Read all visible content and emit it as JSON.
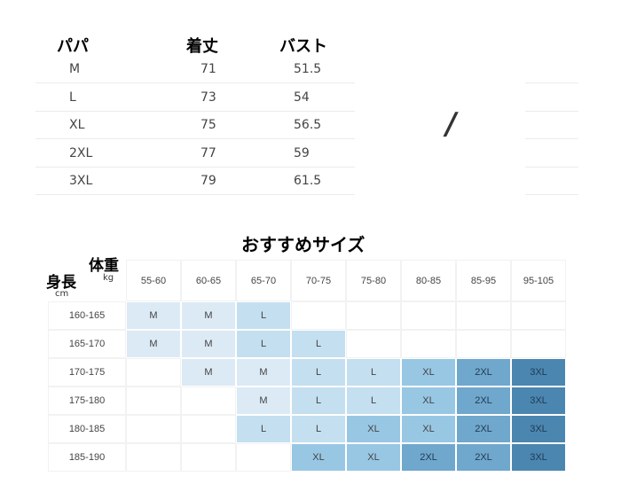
{
  "papa_table": {
    "headers": [
      "パパ",
      "着丈",
      "バスト"
    ],
    "rows": [
      [
        "M",
        "71",
        "51.5"
      ],
      [
        "L",
        "73",
        "54"
      ],
      [
        "XL",
        "75",
        "56.5"
      ],
      [
        "2XL",
        "77",
        "59"
      ],
      [
        "3XL",
        "79",
        "61.5"
      ]
    ],
    "placeholder": "/"
  },
  "recommend": {
    "title": "おすすめサイズ",
    "weight_label": "体重",
    "weight_unit": "kg",
    "height_label": "身長",
    "height_unit": "cm",
    "weights": [
      "55-60",
      "60-65",
      "65-70",
      "70-75",
      "75-80",
      "80-85",
      "85-95",
      "95-105"
    ],
    "heights": [
      "160-165",
      "165-170",
      "170-175",
      "175-180",
      "180-185",
      "185-190"
    ],
    "sizes": [
      [
        "M",
        "M",
        "L",
        "",
        "",
        "",
        "",
        ""
      ],
      [
        "M",
        "M",
        "L",
        "L",
        "",
        "",
        "",
        ""
      ],
      [
        "",
        "M",
        "M",
        "L",
        "L",
        "XL",
        "2XL",
        "3XL"
      ],
      [
        "",
        "",
        "M",
        "L",
        "L",
        "XL",
        "2XL",
        "3XL"
      ],
      [
        "",
        "",
        "L",
        "L",
        "XL",
        "XL",
        "2XL",
        "3XL"
      ],
      [
        "",
        "",
        "",
        "XL",
        "XL",
        "2XL",
        "2XL",
        "3XL"
      ]
    ],
    "colors": {
      "M": "#dceaf5",
      "L": "#c4dff0",
      "XL": "#98c7e4",
      "2XL": "#70a7cd",
      "3XL": "#4b86b0"
    }
  }
}
